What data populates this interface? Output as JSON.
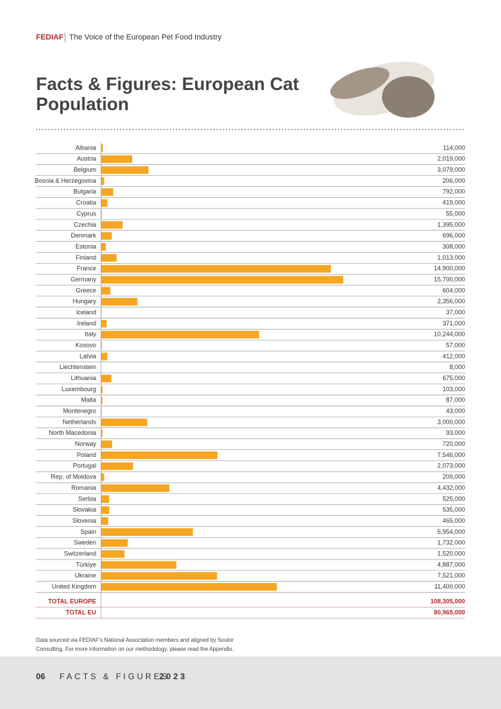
{
  "header": {
    "brand": "FEDIAF",
    "tagline": "The Voice of the European Pet Food Industry"
  },
  "title": [
    "Facts & Figures: European Cat",
    "Population"
  ],
  "chart_data": {
    "type": "bar",
    "orientation": "horizontal",
    "color": "#f5a623",
    "categories": [
      "Albania",
      "Austria",
      "Belgium",
      "Bosnia & Herzegovina",
      "Bulgaria",
      "Croatia",
      "Cyprus",
      "Czechia",
      "Denmark",
      "Estonia",
      "Finland",
      "France",
      "Germany",
      "Greece",
      "Hungary",
      "Iceland",
      "Ireland",
      "Italy",
      "Kosovo",
      "Latvia",
      "Liechtenstein",
      "Lithuania",
      "Luxembourg",
      "Malta",
      "Montenegro",
      "Netherlands",
      "North Macedonia",
      "Norway",
      "Poland",
      "Portugal",
      "Rep. of Moldova",
      "Romania",
      "Serbia",
      "Slovakia",
      "Slovenia",
      "Spain",
      "Sweden",
      "Switzerland",
      "Türkiye",
      "Ukraine",
      "United Kingdom"
    ],
    "values": [
      114000,
      2019000,
      3079000,
      206000,
      792000,
      419000,
      55000,
      1395000,
      696000,
      308000,
      1013000,
      14900000,
      15700000,
      604000,
      2356000,
      37000,
      371000,
      10244000,
      57000,
      412000,
      8000,
      675000,
      103000,
      87000,
      43000,
      3000000,
      93000,
      720000,
      7546000,
      2073000,
      209000,
      4432000,
      525000,
      535000,
      465000,
      5954000,
      1732000,
      1520000,
      4887000,
      7521000,
      11400000
    ],
    "value_labels": [
      "114,000",
      "2,019,000",
      "3,079,000",
      "206,000",
      "792,000",
      "419,000",
      "55,000",
      "1,395,000",
      "696,000",
      "308,000",
      "1,013,000",
      "14,900,000",
      "15,700,000",
      "604,000",
      "2,356,000",
      "37,000",
      "371,000",
      "10,244,000",
      "57,000",
      "412,000",
      "8,000",
      "675,000",
      "103,000",
      "87,000",
      "43,000",
      "3,000,000",
      "93,000",
      "720,000",
      "7,546,000",
      "2,073,000",
      "209,000",
      "4,432,000",
      "525,000",
      "535,000",
      "465,000",
      "5,954,000",
      "1,732,000",
      "1,520,000",
      "4,887,000",
      "7,521,000",
      "11,400,000"
    ]
  },
  "totals": [
    {
      "label": "TOTAL EUROPE",
      "value": "108,305,000"
    },
    {
      "label": "TOTAL EU",
      "value": "80,965,000"
    }
  ],
  "footnote": [
    "Data sourced via FEDIAF's National Association members and aligned by Soulor",
    "Consulting. For more information on our methodology, please read the Appendix."
  ],
  "footer": {
    "page": "06",
    "text": "FACTS & FIGURES",
    "year": "2023"
  }
}
